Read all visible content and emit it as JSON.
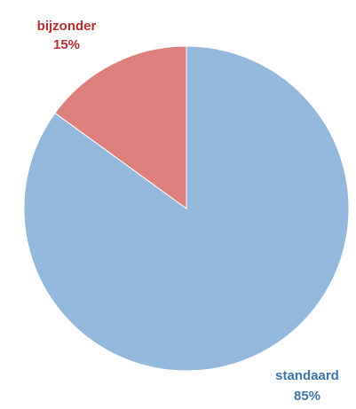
{
  "chart_data": {
    "type": "pie",
    "slices": [
      {
        "label": "standaard",
        "value": 85,
        "percent_label": "85%",
        "color": "#95b9dc",
        "label_color": "#3f74ad"
      },
      {
        "label": "bijzonder",
        "value": 15,
        "percent_label": "15%",
        "color": "#dd7f7d",
        "label_color": "#b2302e"
      }
    ],
    "start_angle_deg": 0,
    "direction": "clockwise"
  }
}
